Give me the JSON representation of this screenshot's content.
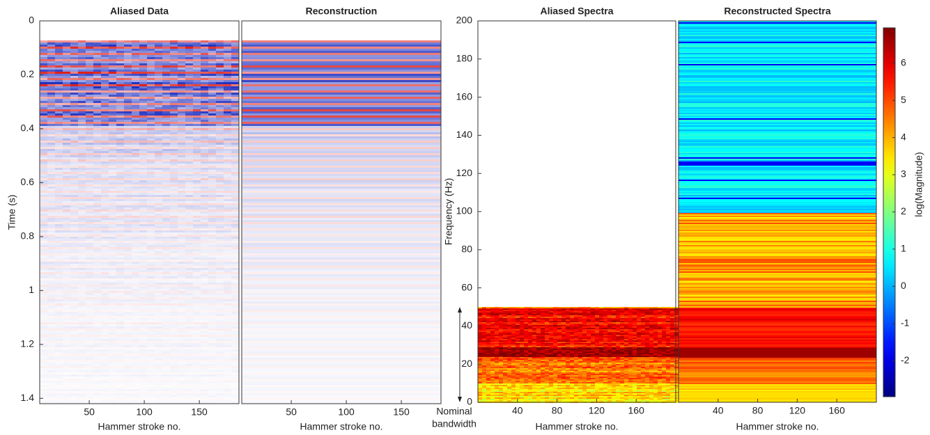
{
  "chart_data": [
    {
      "type": "seismic",
      "title": "Aliased Data",
      "x_label": "Hammer stroke no.",
      "y_label": "Time (s)",
      "xlim": [
        5,
        186
      ],
      "xticks": [
        50,
        100,
        150
      ],
      "ylim": [
        1.42,
        0
      ],
      "yticks": [
        0,
        0.2,
        0.4,
        0.6,
        0.8,
        1,
        1.2,
        1.4
      ]
    },
    {
      "type": "seismic",
      "title": "Reconstruction",
      "x_label": "Hammer stroke no.",
      "xlim": [
        5,
        186
      ],
      "xticks": [
        50,
        100,
        150
      ],
      "ylim": [
        1.42,
        0
      ]
    },
    {
      "type": "spectrum",
      "title": "Aliased Spectra",
      "x_label": "Hammer stroke no.",
      "y_label": "Frequency (Hz)",
      "xlim": [
        0,
        200
      ],
      "xticks": [
        40,
        80,
        120,
        160
      ],
      "ylim": [
        0,
        200
      ],
      "yticks": [
        0,
        20,
        40,
        60,
        80,
        100,
        120,
        140,
        160,
        180,
        200
      ],
      "bandwidth": [
        0,
        50
      ],
      "annotation": [
        "Nominal",
        "bandwidth"
      ]
    },
    {
      "type": "spectrum",
      "title": "Reconstructed Spectra",
      "x_label": "Hammer stroke no.",
      "xlim": [
        0,
        200
      ],
      "xticks": [
        40,
        80,
        120,
        160
      ],
      "ylim": [
        0,
        200
      ],
      "colorbar": {
        "label": "log(Magnitude)",
        "lim": [
          -2.97,
          6.95
        ],
        "ticks": [
          -2,
          -1,
          0,
          1,
          2,
          3,
          4,
          5,
          6
        ]
      }
    }
  ]
}
